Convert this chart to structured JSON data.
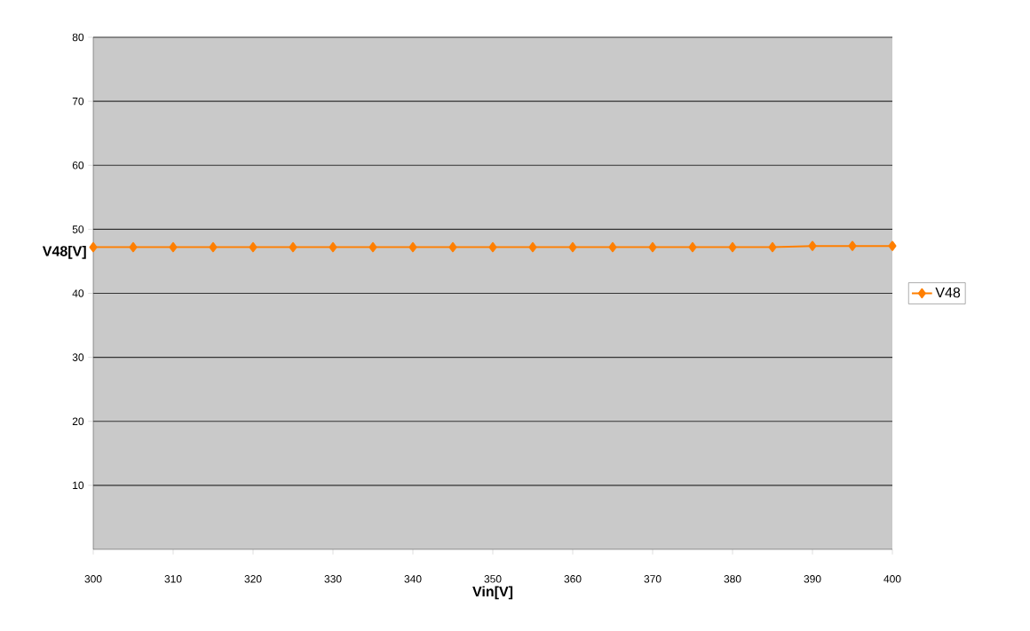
{
  "chart_data": {
    "type": "line",
    "xlabel": "Vin[V]",
    "ylabel": "V48[V]",
    "x": [
      300,
      305,
      310,
      315,
      320,
      325,
      330,
      335,
      340,
      345,
      350,
      355,
      360,
      365,
      370,
      375,
      380,
      385,
      390,
      395,
      400
    ],
    "series": [
      {
        "name": "V48",
        "color": "#ff7f00",
        "values": [
          47.2,
          47.2,
          47.2,
          47.2,
          47.2,
          47.2,
          47.2,
          47.2,
          47.2,
          47.2,
          47.2,
          47.2,
          47.2,
          47.2,
          47.2,
          47.2,
          47.2,
          47.2,
          47.4,
          47.4,
          47.4
        ]
      }
    ],
    "xlim": [
      300,
      400
    ],
    "xticks": [
      300,
      310,
      320,
      330,
      340,
      350,
      360,
      370,
      380,
      390,
      400
    ],
    "ylim": [
      0,
      80
    ],
    "yticks": [
      10,
      20,
      30,
      40,
      50,
      60,
      70,
      80
    ],
    "grid": "y",
    "legend": "right",
    "marker": "diamond",
    "line_style": "solid"
  }
}
